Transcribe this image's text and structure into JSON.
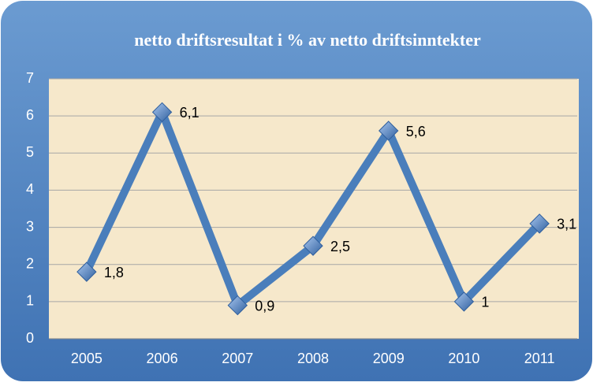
{
  "chart_data": {
    "type": "line",
    "title": "netto driftsresultat i % av netto driftsinntekter",
    "categories": [
      "2005",
      "2006",
      "2007",
      "2008",
      "2009",
      "2010",
      "2011"
    ],
    "series": [
      {
        "name": "netto driftsresultat",
        "color": "#4a7ebb",
        "values": [
          1.8,
          6.1,
          0.9,
          2.5,
          5.6,
          1,
          3.1
        ],
        "value_labels": [
          "1,8",
          "6,1",
          "0,9",
          "2,5",
          "5,6",
          "1",
          "3,1"
        ]
      }
    ],
    "ylim": [
      0,
      7
    ],
    "yticks": [
      0,
      1,
      2,
      3,
      4,
      5,
      6,
      7
    ],
    "grid": true
  }
}
